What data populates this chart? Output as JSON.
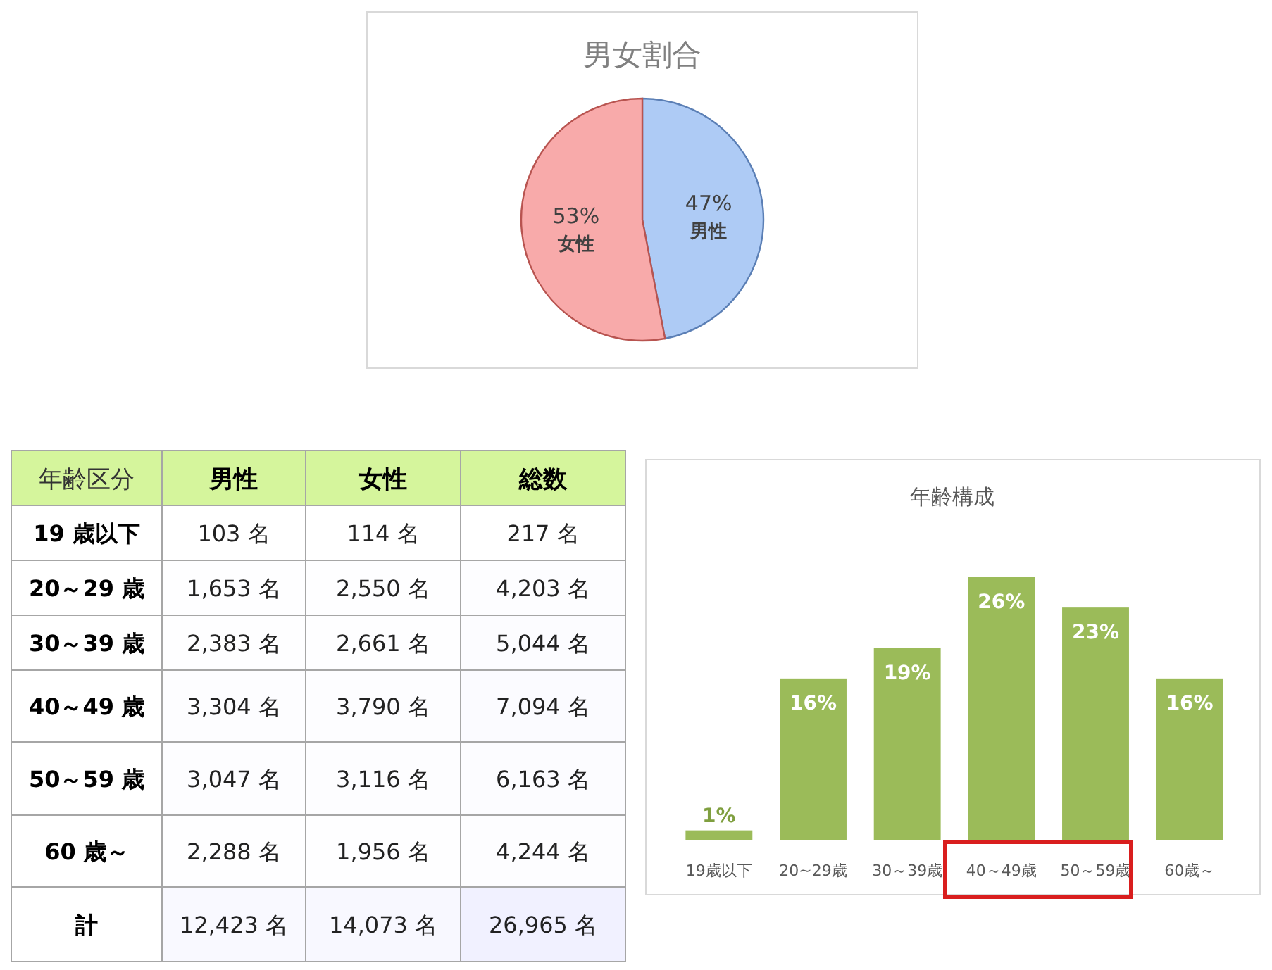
{
  "chart_data": [
    {
      "type": "pie",
      "title": "男女割合",
      "categories": [
        "男性",
        "女性"
      ],
      "values": [
        47,
        53
      ],
      "value_labels": [
        "47%",
        "53%"
      ],
      "colors": [
        "#aecbf5",
        "#f8aaaa"
      ]
    },
    {
      "type": "heatmap",
      "ylabel": "年齢区分",
      "categories": [
        "男性",
        "女性",
        "総数"
      ],
      "y_categories": [
        "19 歳以下",
        "20～29 歳",
        "30～39 歳",
        "40～49 歳",
        "50～59 歳",
        "60 歳～",
        "計"
      ],
      "cells": [
        [
          103,
          114,
          217
        ],
        [
          1653,
          2550,
          4203
        ],
        [
          2383,
          2661,
          5044
        ],
        [
          3304,
          3790,
          7094
        ],
        [
          3047,
          3116,
          6163
        ],
        [
          2288,
          1956,
          4244
        ],
        [
          12423,
          14073,
          26965
        ]
      ],
      "cell_labels": [
        [
          "103 名",
          "114 名",
          "217 名"
        ],
        [
          "1,653 名",
          "2,550 名",
          "4,203 名"
        ],
        [
          "2,383 名",
          "2,661 名",
          "5,044 名"
        ],
        [
          "3,304 名",
          "3,790 名",
          "7,094 名"
        ],
        [
          "3,047 名",
          "3,116 名",
          "6,163 名"
        ],
        [
          "2,288 名",
          "1,956 名",
          "4,244 名"
        ],
        [
          "12,423 名",
          "14,073 名",
          "26,965 名"
        ]
      ]
    },
    {
      "type": "bar",
      "title": "年齢構成",
      "categories": [
        "19歳以下",
        "20~29歳",
        "30～39歳",
        "40～49歳",
        "50～59歳",
        "60歳～"
      ],
      "values": [
        1,
        16,
        19,
        26,
        23,
        16
      ],
      "value_labels": [
        "1%",
        "16%",
        "19%",
        "26%",
        "23%",
        "16%"
      ],
      "color": "#9bbb59"
    }
  ]
}
